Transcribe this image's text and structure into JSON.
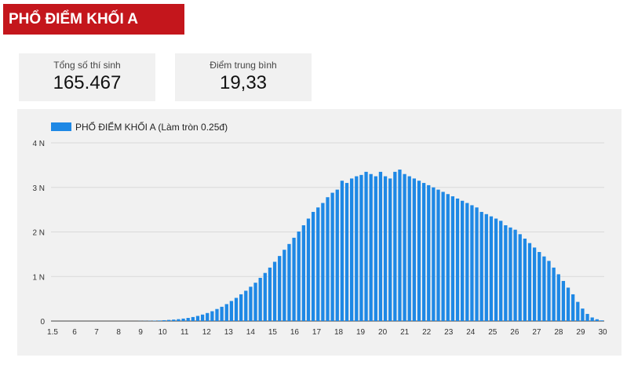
{
  "header": {
    "title": "PHỔ ĐIỂM KHỐI A"
  },
  "stats": [
    {
      "label": "Tổng số thí sinh",
      "value": "165.467"
    },
    {
      "label": "Điểm trung bình",
      "value": "19,33"
    }
  ],
  "colors": {
    "bar": "#1e88e5",
    "title_bg": "#c4161c",
    "panel_bg": "#f1f1f1"
  },
  "chart_data": {
    "type": "bar",
    "legend": "PHỔ ĐIỂM KHỐI A (Làm tròn 0.25đ)",
    "legend_position": "top-left",
    "grid": true,
    "ylim": [
      0,
      4000
    ],
    "yticks": [
      {
        "value": 0,
        "label": "0"
      },
      {
        "value": 1000,
        "label": "1 N"
      },
      {
        "value": 2000,
        "label": "2 N"
      },
      {
        "value": 3000,
        "label": "3 N"
      },
      {
        "value": 4000,
        "label": "4 N"
      }
    ],
    "xtick_labels": [
      "1.5",
      "6",
      "7",
      "8",
      "9",
      "10",
      "11",
      "12",
      "13",
      "14",
      "15",
      "16",
      "17",
      "18",
      "19",
      "20",
      "21",
      "22",
      "23",
      "24",
      "25",
      "26",
      "27",
      "28",
      "29",
      "30"
    ],
    "series": [
      {
        "name": "PHỔ ĐIỂM KHỐI A (Làm tròn 0.25đ)",
        "x": [
          1.5,
          1.75,
          2,
          2.25,
          2.5,
          2.75,
          3,
          3.25,
          3.5,
          3.75,
          4,
          4.25,
          4.5,
          4.75,
          5,
          5.25,
          5.5,
          5.75,
          6,
          6.25,
          6.5,
          6.75,
          7,
          7.25,
          7.5,
          7.75,
          8,
          8.25,
          8.5,
          8.75,
          9,
          9.25,
          9.5,
          9.75,
          10,
          10.25,
          10.5,
          10.75,
          11,
          11.25,
          11.5,
          11.75,
          12,
          12.25,
          12.5,
          12.75,
          13,
          13.25,
          13.5,
          13.75,
          14,
          14.25,
          14.5,
          14.75,
          15,
          15.25,
          15.5,
          15.75,
          16,
          16.25,
          16.5,
          16.75,
          17,
          17.25,
          17.5,
          17.75,
          18,
          18.25,
          18.5,
          18.75,
          19,
          19.25,
          19.5,
          19.75,
          20,
          20.25,
          20.5,
          20.75,
          21,
          21.25,
          21.5,
          21.75,
          22,
          22.25,
          22.5,
          22.75,
          23,
          23.25,
          23.5,
          23.75,
          24,
          24.25,
          24.5,
          24.75,
          25,
          25.25,
          25.5,
          25.75,
          26,
          26.25,
          26.5,
          26.75,
          27,
          27.25,
          27.5,
          27.75,
          28,
          28.25,
          28.5,
          28.75,
          29,
          29.25,
          29.5,
          29.75,
          30
        ],
        "values": [
          0,
          0,
          0,
          0,
          0,
          0,
          0,
          0,
          0,
          0,
          0,
          0,
          0,
          0,
          0,
          0,
          0,
          0,
          2,
          3,
          5,
          8,
          12,
          18,
          25,
          32,
          42,
          55,
          70,
          90,
          115,
          145,
          180,
          220,
          270,
          320,
          380,
          450,
          520,
          600,
          680,
          770,
          860,
          970,
          1080,
          1200,
          1330,
          1460,
          1600,
          1730,
          1870,
          2010,
          2150,
          2300,
          2450,
          2550,
          2650,
          2780,
          2880,
          2950,
          3150,
          3100,
          3200,
          3250,
          3280,
          3350,
          3300,
          3250,
          3350,
          3250,
          3200,
          3350,
          3400,
          3300,
          3250,
          3200,
          3150,
          3100,
          3050,
          3000,
          2950,
          2900,
          2850,
          2800,
          2750,
          2700,
          2650,
          2600,
          2550,
          2450,
          2400,
          2350,
          2300,
          2250,
          2150,
          2100,
          2050,
          1950,
          1850,
          1750,
          1650,
          1550,
          1450,
          1350,
          1200,
          1050,
          900,
          750,
          600,
          430,
          280,
          160,
          80,
          40,
          15
        ],
        "values_note": ""
      }
    ]
  }
}
